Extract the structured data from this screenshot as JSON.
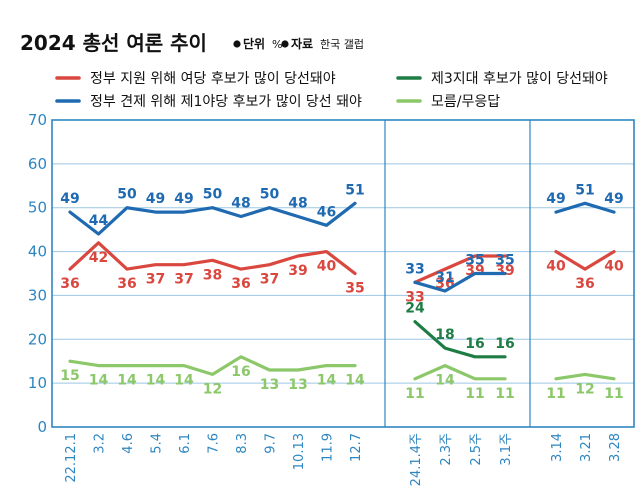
{
  "chart_data": {
    "type": "line",
    "title": "2024 총선 여론 추이",
    "notes": [
      {
        "label": "단위",
        "value": "%"
      },
      {
        "label": "자료",
        "value": "한국 갤럽"
      }
    ],
    "ylim": [
      0,
      70
    ],
    "yticks": [
      0,
      10,
      20,
      30,
      40,
      50,
      60,
      70
    ],
    "grid": true,
    "legend_position": "top",
    "categories": [
      "22.12.1",
      "3.2",
      "4.6",
      "5.4",
      "6.1",
      "7.6",
      "8.3",
      "9.7",
      "10.13",
      "11.9",
      "12.7",
      "24.1.4주",
      "2.3주",
      "2.5주",
      "3.1주",
      "3.14",
      "3.21",
      "3.28"
    ],
    "segments": [
      {
        "start": 0,
        "end": 10
      },
      {
        "start": 11,
        "end": 14
      },
      {
        "start": 15,
        "end": 17
      }
    ],
    "series": [
      {
        "name": "정부 지원 위해 여당 후보가 많이 당선돼야",
        "color": "#d9473f",
        "label_pos": "below",
        "values": [
          36,
          42,
          36,
          37,
          37,
          38,
          36,
          37,
          39,
          40,
          35,
          33,
          36,
          39,
          39,
          40,
          36,
          40
        ],
        "labels": [
          "36",
          "42",
          "36",
          "37",
          "37",
          "38",
          "36",
          "37",
          "39",
          "40",
          "35",
          "33",
          "36",
          "39",
          "39",
          "40",
          "36",
          "40"
        ]
      },
      {
        "name": "정부 견제 위해 제1야당 후보가 많이 당선 돼야",
        "color": "#1f6ab0",
        "label_pos": "above",
        "values": [
          49,
          44,
          50,
          49,
          49,
          50,
          48,
          50,
          48,
          46,
          51,
          33,
          31,
          35,
          35,
          49,
          51,
          49
        ],
        "labels": [
          "49",
          "44",
          "50",
          "49",
          "49",
          "50",
          "48",
          "50",
          "48",
          "46",
          "51",
          "33",
          "31",
          "35",
          "35",
          "49",
          "51",
          "49"
        ]
      },
      {
        "name": "제3지대 후보가 많이 당선돼야",
        "color": "#1e7d45",
        "label_pos": "above",
        "values": [
          null,
          null,
          null,
          null,
          null,
          null,
          null,
          null,
          null,
          null,
          null,
          24,
          18,
          16,
          16,
          null,
          null,
          null
        ],
        "labels": [
          "",
          "",
          "",
          "",
          "",
          "",
          "",
          "",
          "",
          "",
          "",
          "24",
          "18",
          "16",
          "16",
          "",
          "",
          ""
        ]
      },
      {
        "name": "모름/무응답",
        "color": "#8cc86a",
        "label_pos": "below",
        "values": [
          15,
          14,
          14,
          14,
          14,
          12,
          16,
          13,
          13,
          14,
          14,
          11,
          14,
          11,
          11,
          11,
          12,
          11
        ],
        "labels": [
          "15",
          "14",
          "14",
          "14",
          "14",
          "12",
          "16",
          "13",
          "13",
          "14",
          "14",
          "11",
          "14",
          "11",
          "11",
          "11",
          "12",
          "11"
        ]
      }
    ]
  }
}
